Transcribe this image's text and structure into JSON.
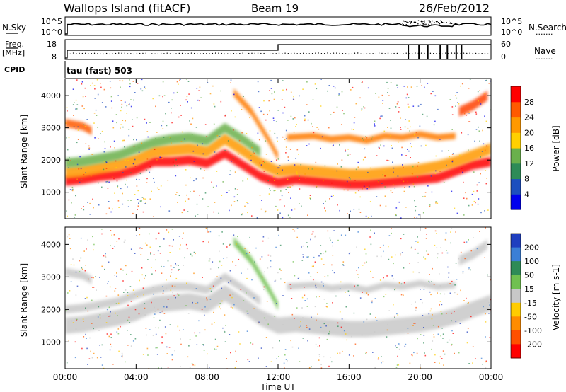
{
  "header": {
    "site": "Wallops Island (fitACF)",
    "beam": "Beam 19",
    "date": "26/Feb/2012"
  },
  "top_panels": {
    "nsky": {
      "label": "N.Sky",
      "ticks": [
        "10^5",
        "10^0"
      ],
      "right_ticks": [
        "10^5",
        "10^0"
      ],
      "right_label": "N.Search",
      "right_legend": "......."
    },
    "freq": {
      "label_line1": "Freq.",
      "label_line2": "[MHz]",
      "ticks": [
        "18",
        "8"
      ],
      "right_ticks": [
        "60",
        "0"
      ],
      "right_label": "Nave",
      "right_legend": "......."
    },
    "cpid": {
      "label": "CPID",
      "mode": "tau (fast) 503"
    }
  },
  "chart_data": [
    {
      "type": "heatmap",
      "name": "power",
      "ylabel": "Slant Range [km]",
      "ylim": [
        180,
        4530
      ],
      "yticks": [
        1000,
        2000,
        3000,
        4000
      ],
      "xlim": [
        0,
        24
      ],
      "colorbar": {
        "label": "Power [dB]",
        "ticks": [
          "4",
          "8",
          "12",
          "16",
          "20",
          "24",
          "28"
        ],
        "colors": [
          "#0000ee",
          "#1c4fbf",
          "#2e8b57",
          "#6ab04c",
          "#ffd000",
          "#ff9900",
          "#ff5a00",
          "#ff0000"
        ]
      },
      "bands": [
        {
          "range_km": [
            [
              0,
              1350
            ],
            [
              1,
              1400
            ],
            [
              2,
              1500
            ],
            [
              3,
              1550
            ],
            [
              4,
              1700
            ],
            [
              5,
              1950
            ],
            [
              6,
              1950
            ],
            [
              7,
              2000
            ],
            [
              8,
              1900
            ],
            [
              9,
              2200
            ],
            [
              10,
              1850
            ],
            [
              11,
              1500
            ],
            [
              12,
              1300
            ],
            [
              13,
              1400
            ],
            [
              14,
              1350
            ],
            [
              15,
              1300
            ],
            [
              16,
              1250
            ],
            [
              17,
              1250
            ],
            [
              18,
              1300
            ],
            [
              19,
              1350
            ],
            [
              20,
              1400
            ],
            [
              21,
              1450
            ],
            [
              22,
              1650
            ],
            [
              23,
              1850
            ],
            [
              24,
              1950
            ]
          ],
          "width_km": 300,
          "color": "#ff0000"
        },
        {
          "range_km": [
            [
              0,
              1600
            ],
            [
              1,
              1650
            ],
            [
              2,
              1750
            ],
            [
              3,
              1850
            ],
            [
              4,
              2000
            ],
            [
              5,
              2250
            ],
            [
              6,
              2300
            ],
            [
              7,
              2350
            ],
            [
              8,
              2250
            ],
            [
              9,
              2650
            ],
            [
              10,
              2300
            ],
            [
              11,
              1900
            ],
            [
              12,
              1650
            ],
            [
              13,
              1700
            ],
            [
              14,
              1650
            ],
            [
              15,
              1600
            ],
            [
              16,
              1550
            ],
            [
              17,
              1550
            ],
            [
              18,
              1600
            ],
            [
              19,
              1650
            ],
            [
              20,
              1700
            ],
            [
              21,
              1800
            ],
            [
              22,
              1950
            ],
            [
              23,
              2150
            ],
            [
              24,
              2350
            ]
          ],
          "width_km": 350,
          "color": "#ff9900"
        },
        {
          "range_km": [
            [
              0,
              1900
            ],
            [
              1,
              1950
            ],
            [
              2,
              2050
            ],
            [
              3,
              2150
            ],
            [
              4,
              2350
            ],
            [
              5,
              2550
            ],
            [
              6,
              2650
            ],
            [
              7,
              2700
            ],
            [
              8,
              2600
            ],
            [
              9,
              3000
            ],
            [
              10,
              2650
            ],
            [
              11,
              2250
            ]
          ],
          "width_km": 300,
          "color": "#6ab04c"
        },
        {
          "range_km": [
            [
              0,
              3150
            ],
            [
              1,
              3050
            ],
            [
              1.5,
              2900
            ]
          ],
          "width_km": 250,
          "color": "#ff5a00"
        },
        {
          "range_km": [
            [
              9.5,
              4100
            ],
            [
              10.5,
              3500
            ],
            [
              11.5,
              2600
            ],
            [
              12,
              2100
            ]
          ],
          "width_km": 250,
          "color": "#ff7a00"
        },
        {
          "range_km": [
            [
              12.5,
              2700
            ],
            [
              14,
              2750
            ],
            [
              15,
              2650
            ],
            [
              16,
              2700
            ],
            [
              17,
              2600
            ],
            [
              18,
              2750
            ],
            [
              19,
              2700
            ],
            [
              20,
              2800
            ],
            [
              21,
              2700
            ],
            [
              22,
              2750
            ]
          ],
          "width_km": 200,
          "color": "#ff7a00"
        },
        {
          "range_km": [
            [
              22.2,
              3500
            ],
            [
              23,
              3700
            ],
            [
              23.8,
              4000
            ]
          ],
          "width_km": 300,
          "color": "#ff4000"
        }
      ]
    },
    {
      "type": "heatmap",
      "name": "velocity",
      "ylabel": "Slant Range [km]",
      "xlabel": "Time UT",
      "ylim": [
        180,
        4530
      ],
      "yticks": [
        1000,
        2000,
        3000,
        4000
      ],
      "xlim": [
        0,
        24
      ],
      "xticks": [
        "00:00",
        "04:00",
        "08:00",
        "12:00",
        "16:00",
        "20:00",
        "00:00"
      ],
      "colorbar": {
        "label": "Velocity [m s-1]",
        "ticks": [
          "200",
          "100",
          "50",
          "15",
          "-15",
          "-50",
          "-100",
          "-200"
        ],
        "colors": [
          "#1f3fbf",
          "#3b7fd6",
          "#2e8b57",
          "#70c050",
          "#c8c8c8",
          "#ffcc00",
          "#ff8c00",
          "#ff5000",
          "#ff0000"
        ]
      },
      "bands": [
        {
          "range_km": [
            [
              0,
              1500
            ],
            [
              1,
              1550
            ],
            [
              2,
              1650
            ],
            [
              3,
              1750
            ],
            [
              4,
              1900
            ],
            [
              5,
              2150
            ],
            [
              6,
              2200
            ],
            [
              7,
              2250
            ],
            [
              8,
              2150
            ],
            [
              9,
              2500
            ],
            [
              10,
              2150
            ],
            [
              11,
              1750
            ],
            [
              12,
              1500
            ],
            [
              13,
              1550
            ],
            [
              14,
              1500
            ],
            [
              15,
              1450
            ],
            [
              16,
              1400
            ],
            [
              17,
              1400
            ],
            [
              18,
              1450
            ],
            [
              19,
              1500
            ],
            [
              20,
              1550
            ],
            [
              21,
              1650
            ],
            [
              22,
              1800
            ],
            [
              23,
              2000
            ],
            [
              24,
              2200
            ]
          ],
          "width_km": 500,
          "color": "#c8c8c8"
        },
        {
          "range_km": [
            [
              0,
              2000
            ],
            [
              1,
              2050
            ],
            [
              2,
              2150
            ],
            [
              3,
              2250
            ],
            [
              4,
              2450
            ],
            [
              5,
              2600
            ],
            [
              6,
              2700
            ],
            [
              7,
              2700
            ],
            [
              8,
              2600
            ],
            [
              9,
              3000
            ],
            [
              10,
              2650
            ],
            [
              11,
              2250
            ]
          ],
          "width_km": 250,
          "color": "#c8c8c8"
        },
        {
          "range_km": [
            [
              0,
              3150
            ],
            [
              1,
              3050
            ],
            [
              1.5,
              2900
            ]
          ],
          "width_km": 250,
          "color": "#c8c8c8"
        },
        {
          "range_km": [
            [
              9.5,
              4100
            ],
            [
              10.5,
              3500
            ],
            [
              11.5,
              2600
            ],
            [
              12,
              2100
            ]
          ],
          "width_km": 250,
          "color": "#70c050"
        },
        {
          "range_km": [
            [
              12.5,
              2700
            ],
            [
              14,
              2750
            ],
            [
              15,
              2650
            ],
            [
              16,
              2700
            ],
            [
              17,
              2600
            ],
            [
              18,
              2750
            ],
            [
              19,
              2700
            ],
            [
              20,
              2800
            ],
            [
              21,
              2700
            ],
            [
              22,
              2750
            ]
          ],
          "width_km": 200,
          "color": "#c8c8c8"
        },
        {
          "range_km": [
            [
              22.2,
              3500
            ],
            [
              23,
              3700
            ],
            [
              23.8,
              4000
            ]
          ],
          "width_km": 300,
          "color": "#c8c8c8"
        }
      ]
    }
  ]
}
